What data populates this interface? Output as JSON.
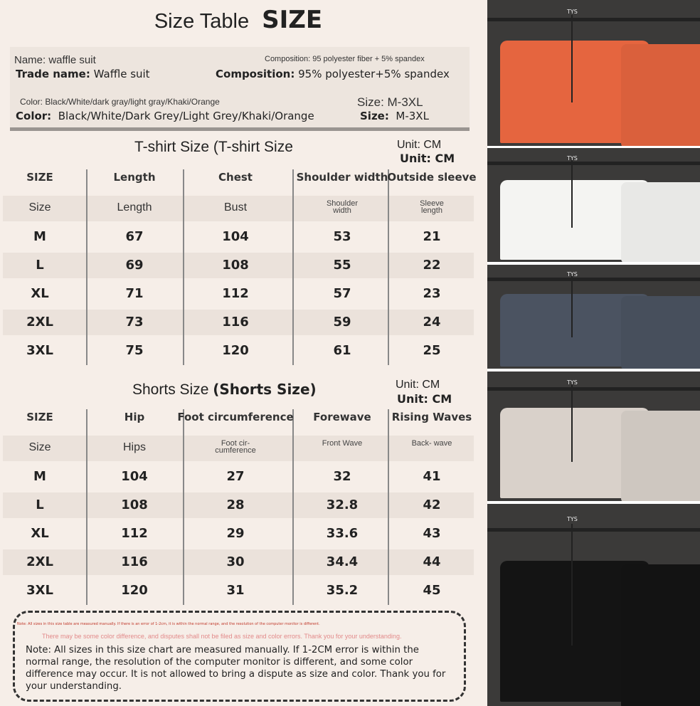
{
  "header": {
    "title": "Size Table",
    "title_bold": "SIZE"
  },
  "info": {
    "name_small": "Name: waffle suit",
    "trade_label": "Trade name:",
    "trade_value": "Waffle suit",
    "composition_small": "Composition: 95 polyester fiber + 5% spandex",
    "composition_label": "Composition:",
    "composition_value": "95% polyester+5% spandex",
    "color_small": "Color: Black/White/dark gray/light gray/Khaki/Orange",
    "color_label": "Color:",
    "color_value": "Black/White/Dark Grey/Light Grey/Khaki/Orange",
    "size_small": "Size: M-3XL",
    "size_label": "Size:",
    "size_value": "M-3XL"
  },
  "tshirt": {
    "title": "T-shirt Size (T-shirt Size",
    "unit_small": "Unit: CM",
    "unit_bold": "Unit: CM",
    "headers": [
      "SIZE",
      "Length",
      "Chest",
      "Shoulder width",
      "Outside sleeve"
    ],
    "subheaders": [
      "Size",
      "Length",
      "Bust",
      "Shoulder width",
      "Sleeve length"
    ],
    "rows": [
      [
        "M",
        "67",
        "104",
        "53",
        "21"
      ],
      [
        "L",
        "69",
        "108",
        "55",
        "22"
      ],
      [
        "XL",
        "71",
        "112",
        "57",
        "23"
      ],
      [
        "2XL",
        "73",
        "116",
        "59",
        "24"
      ],
      [
        "3XL",
        "75",
        "120",
        "61",
        "25"
      ]
    ]
  },
  "shorts": {
    "title": "Shorts Size",
    "title_bold": "(Shorts Size)",
    "unit_small": "Unit: CM",
    "unit_bold": "Unit: CM",
    "headers": [
      "SIZE",
      "Hip",
      "Foot circumference",
      "Forewave",
      "Rising Waves"
    ],
    "subheaders": [
      "Size",
      "Hips",
      "Foot cir- cumference",
      "Front Wave",
      "Back- wave"
    ],
    "rows": [
      [
        "M",
        "104",
        "27",
        "32",
        "41"
      ],
      [
        "L",
        "108",
        "28",
        "32.8",
        "42"
      ],
      [
        "XL",
        "112",
        "29",
        "33.6",
        "43"
      ],
      [
        "2XL",
        "116",
        "30",
        "34.4",
        "44"
      ],
      [
        "3XL",
        "120",
        "31",
        "35.2",
        "45"
      ]
    ]
  },
  "note": {
    "tiny": "Note: All sizes in this size table are measured manually. If there is an error of 1-2cm, it is within the normal range, and the resolution of the computer monitor is different.",
    "pink": "There may be some color difference, and disputes shall not be filed as size and color errors. Thank you for your understanding.",
    "main": "Note: All sizes in this size chart are measured manually. If 1-2CM error is within the normal range, the resolution of the computer monitor is different, and some color difference may occur. It is not allowed to bring a dispute as size and color. Thank you for your understanding."
  },
  "photos": {
    "tag": "TYS",
    "colors": [
      "#e5653f",
      "#f4f4f2",
      "#4b5361",
      "#d9d1ca",
      "#141414"
    ]
  }
}
